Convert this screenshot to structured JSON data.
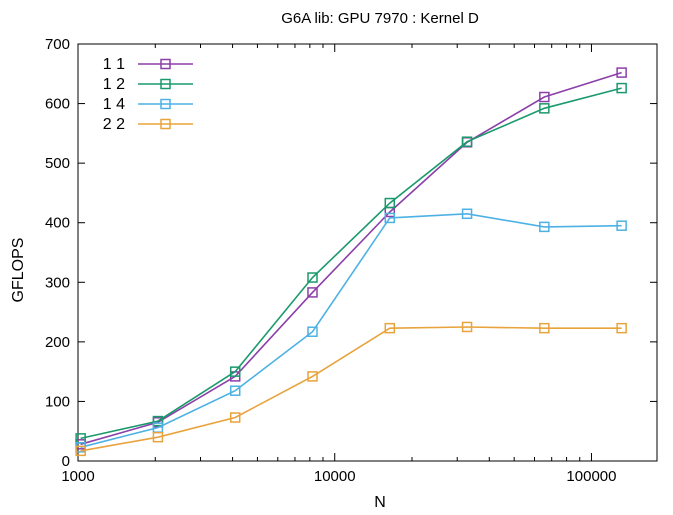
{
  "chart_data": {
    "type": "line",
    "title": "G6A lib: GPU 7970 : Kernel D",
    "xlabel": "N",
    "ylabel": "GFLOPS",
    "xscale": "log",
    "xlim": [
      1000,
      180000
    ],
    "ylim": [
      0,
      700
    ],
    "xticks": [
      1000,
      10000,
      100000
    ],
    "xtick_labels": [
      "1000",
      "10000",
      "100000"
    ],
    "yticks": [
      0,
      100,
      200,
      300,
      400,
      500,
      600,
      700
    ],
    "ytick_labels": [
      "0",
      "100",
      "200",
      "300",
      "400",
      "500",
      "600",
      "700"
    ],
    "grid": false,
    "legend_position": "top-left",
    "marker": "square",
    "x": [
      1024,
      2048,
      4096,
      8192,
      16384,
      32768,
      65536,
      131072
    ],
    "series": [
      {
        "name": "1 1",
        "color": "#8b3fa8",
        "values": [
          28,
          65,
          142,
          283,
          418,
          535,
          611,
          652
        ]
      },
      {
        "name": "1 2",
        "color": "#1a9a6c",
        "values": [
          38,
          67,
          150,
          308,
          433,
          536,
          592,
          626
        ]
      },
      {
        "name": "1 4",
        "color": "#4db1e4",
        "values": [
          23,
          56,
          118,
          217,
          408,
          415,
          393,
          395
        ]
      },
      {
        "name": "2 2",
        "color": "#e8a33c",
        "values": [
          17,
          40,
          73,
          142,
          223,
          225,
          223,
          223
        ]
      }
    ]
  }
}
